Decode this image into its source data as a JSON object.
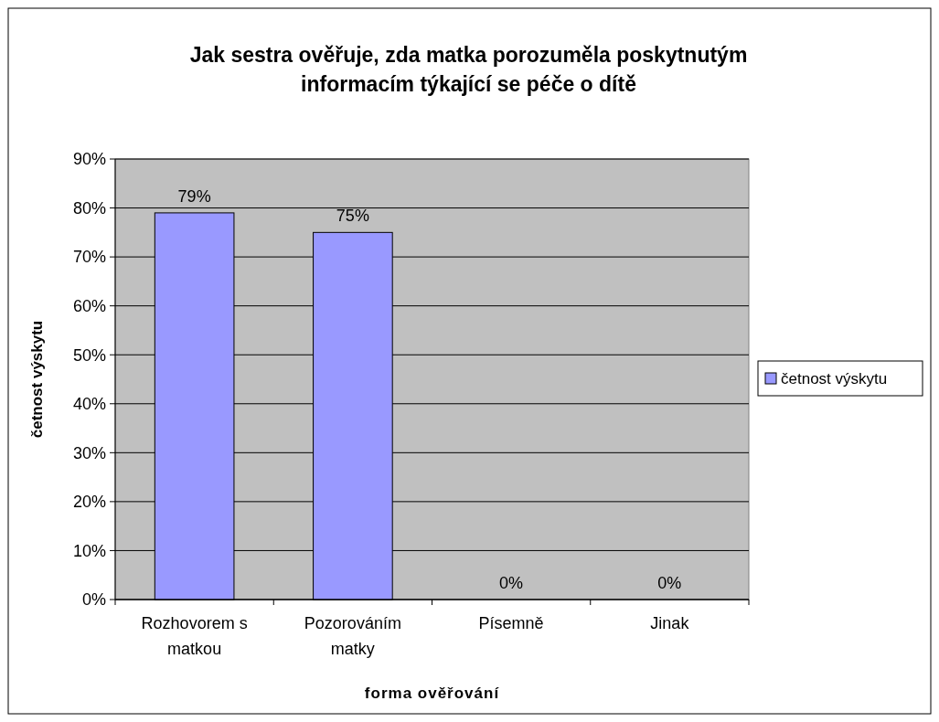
{
  "chart_data": {
    "type": "bar",
    "title": "Jak sestra ověřuje, zda matka porozuměla poskytnutým informacím týkající se péče o dítě",
    "xlabel": "forma ověřování",
    "ylabel": "četnost výskytu",
    "categories": [
      "Rozhovorem s matkou",
      "Pozorováním matky",
      "Písemně",
      "Jinak"
    ],
    "series": [
      {
        "name": "četnost výskytu",
        "color": "#9999ff",
        "values": [
          79,
          75,
          0,
          0
        ],
        "value_labels": [
          "79%",
          "75%",
          "0%",
          "0%"
        ]
      }
    ],
    "ylim": [
      0,
      90
    ],
    "yticks": [
      {
        "value": 0,
        "label": "0%"
      },
      {
        "value": 10,
        "label": "10%"
      },
      {
        "value": 20,
        "label": "20%"
      },
      {
        "value": 30,
        "label": "30%"
      },
      {
        "value": 40,
        "label": "40%"
      },
      {
        "value": 50,
        "label": "50%"
      },
      {
        "value": 60,
        "label": "60%"
      },
      {
        "value": 70,
        "label": "70%"
      },
      {
        "value": 80,
        "label": "80%"
      },
      {
        "value": 90,
        "label": "90%"
      }
    ],
    "grid": "y",
    "legend": "right"
  }
}
